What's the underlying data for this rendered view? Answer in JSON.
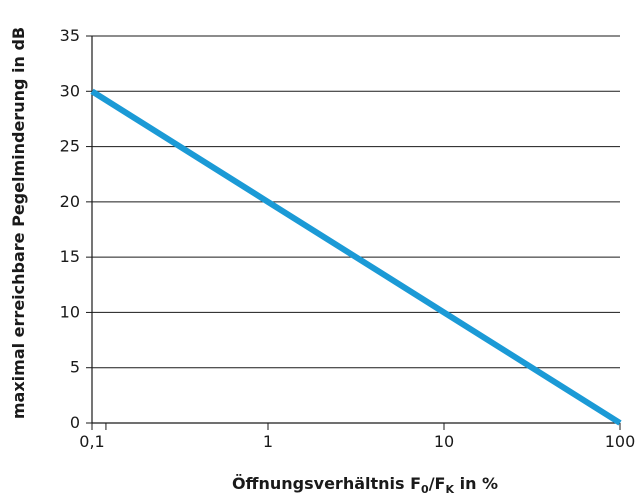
{
  "chart_data": {
    "type": "line",
    "xscale": "log",
    "ylabel": "maximal erreichbare Pegelminderung in dB",
    "xlabel": {
      "prefix": "Öffnungsverhältnis F",
      "sub1": "0",
      "mid": "/F",
      "sub2": "K",
      "suffix": " in %"
    },
    "xlim": [
      0.1,
      100
    ],
    "ylim": [
      0,
      35
    ],
    "x_ticks": [
      {
        "value": 0.1,
        "label": "0,1"
      },
      {
        "value": 1,
        "label": "1"
      },
      {
        "value": 10,
        "label": "10"
      },
      {
        "value": 100,
        "label": "100"
      }
    ],
    "x_minor_ticks": [
      0.12
    ],
    "y_ticks": [
      0,
      5,
      10,
      15,
      20,
      25,
      30,
      35
    ],
    "grid": "horizontal",
    "series": [
      {
        "color": "#1b9ad6",
        "x": [
          0.1,
          1,
          10,
          100
        ],
        "y": [
          30,
          20,
          10,
          0
        ]
      }
    ]
  }
}
